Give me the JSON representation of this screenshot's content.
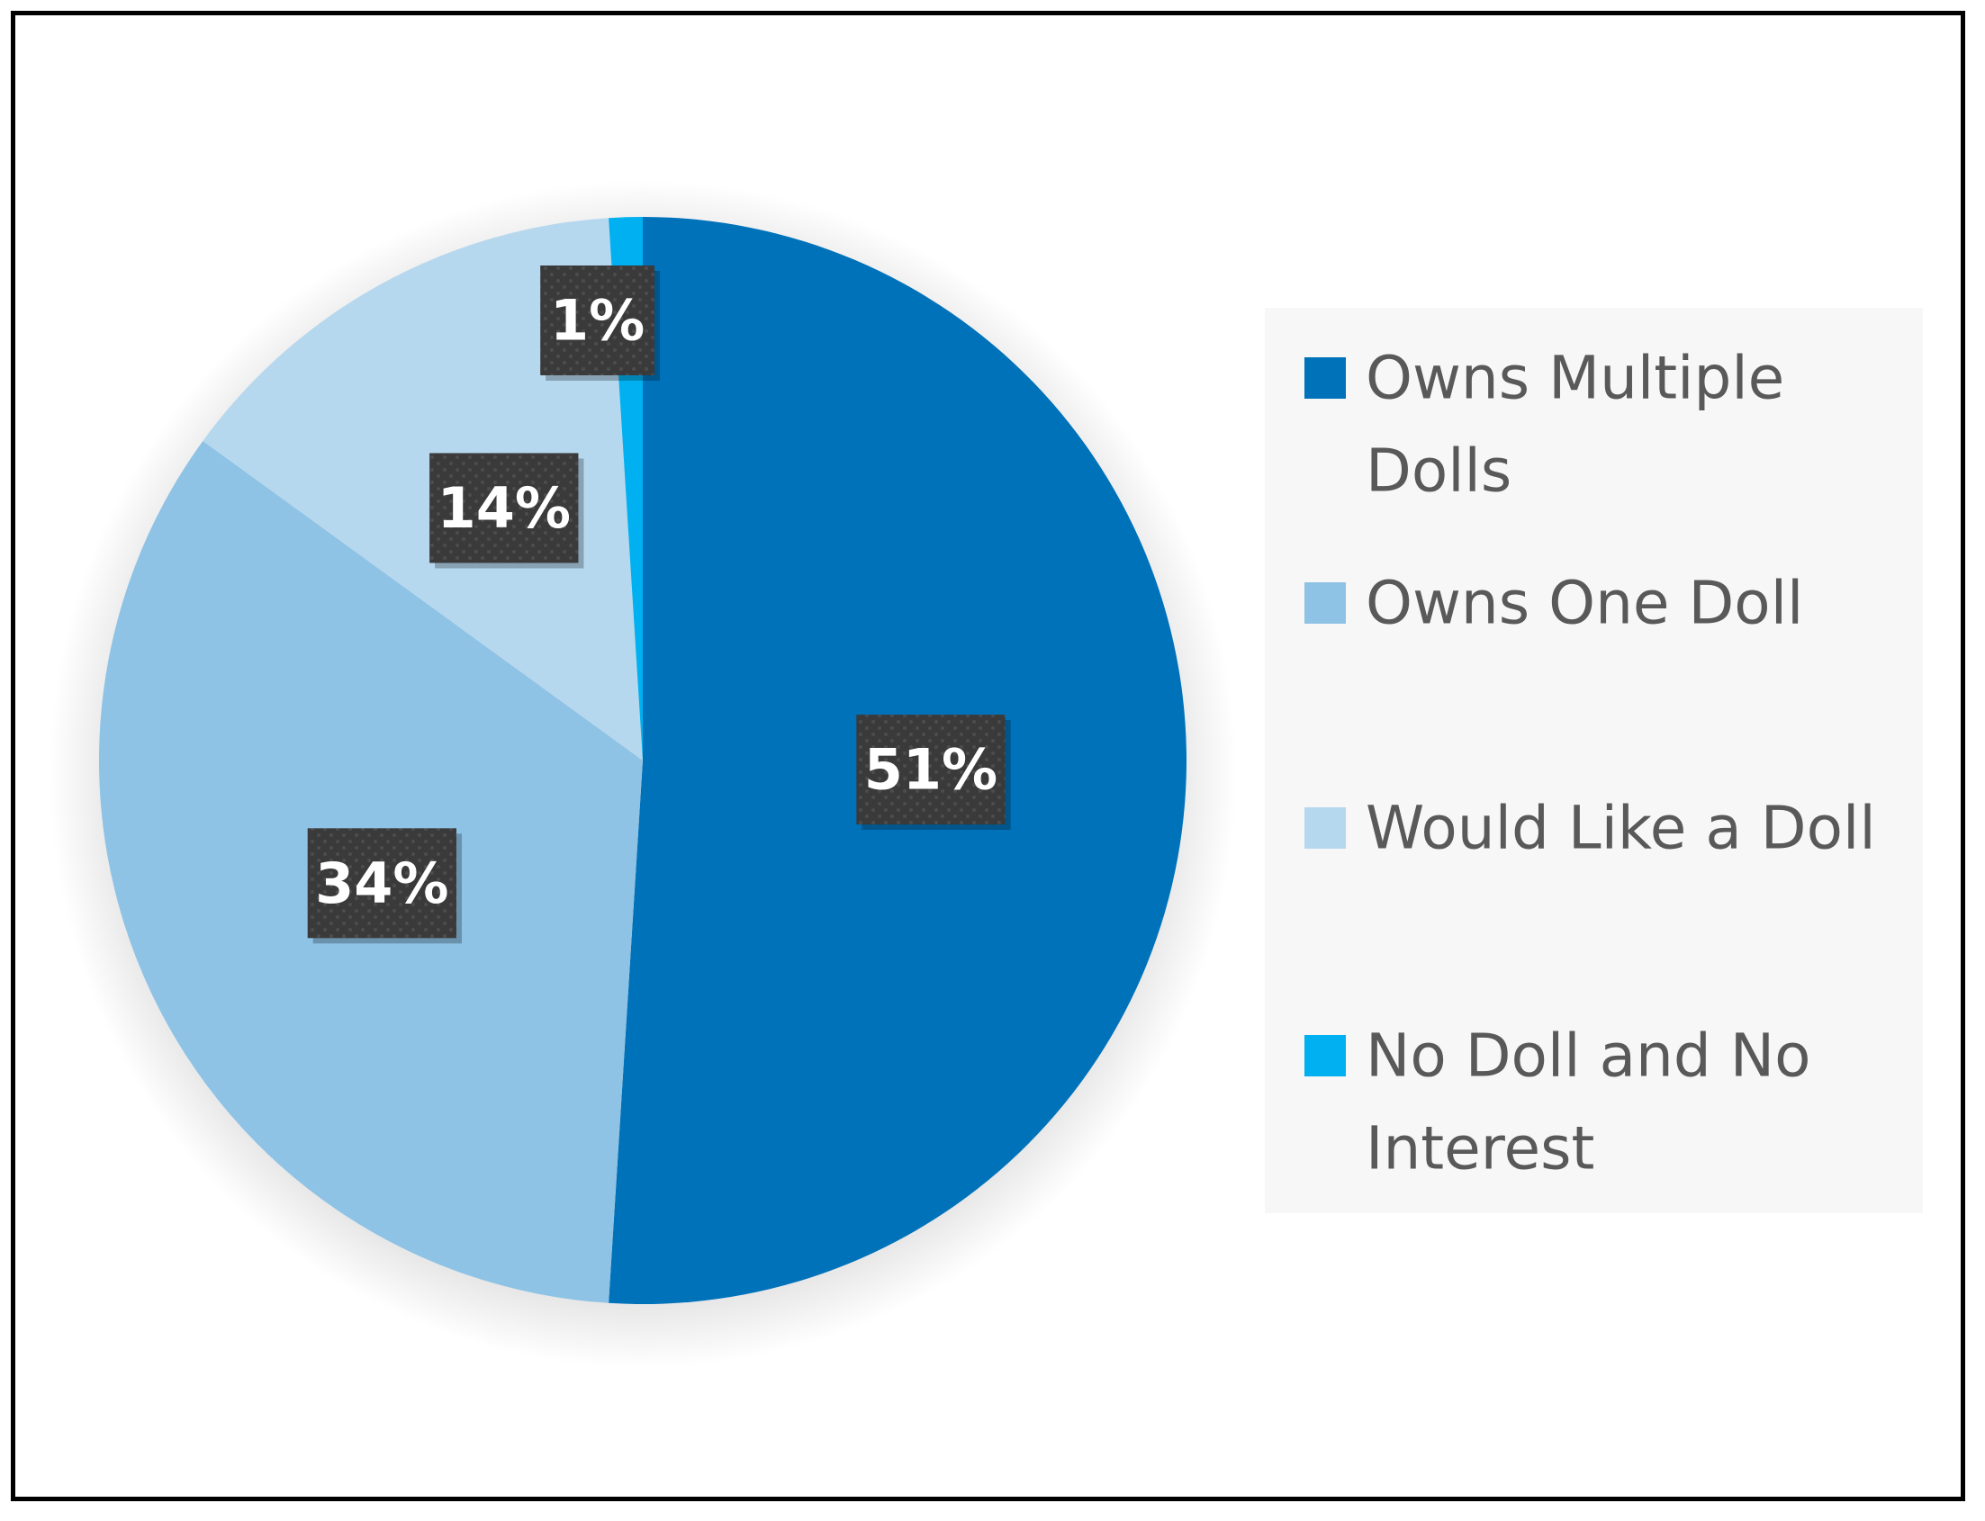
{
  "chart_data": {
    "type": "pie",
    "title": "",
    "categories": [
      "Owns Multiple Dolls",
      "Owns One Doll",
      "Would Like a Doll",
      "No Doll and No Interest"
    ],
    "values": [
      51,
      34,
      14,
      1
    ],
    "data_labels": [
      "51%",
      "34%",
      "14%",
      "1%"
    ],
    "colors": [
      "#0072BA",
      "#8EC3E6",
      "#B6D8EF",
      "#00B0F0"
    ],
    "start_angle_deg": 0,
    "direction": "clockwise",
    "legend_position": "right",
    "legend_entries": [
      {
        "lines": [
          "Owns Multiple",
          "Dolls"
        ]
      },
      {
        "lines": [
          "Owns One Doll"
        ]
      },
      {
        "lines": [
          "Would Like a Doll"
        ]
      },
      {
        "lines": [
          "No Doll and No",
          "Interest"
        ]
      }
    ]
  }
}
